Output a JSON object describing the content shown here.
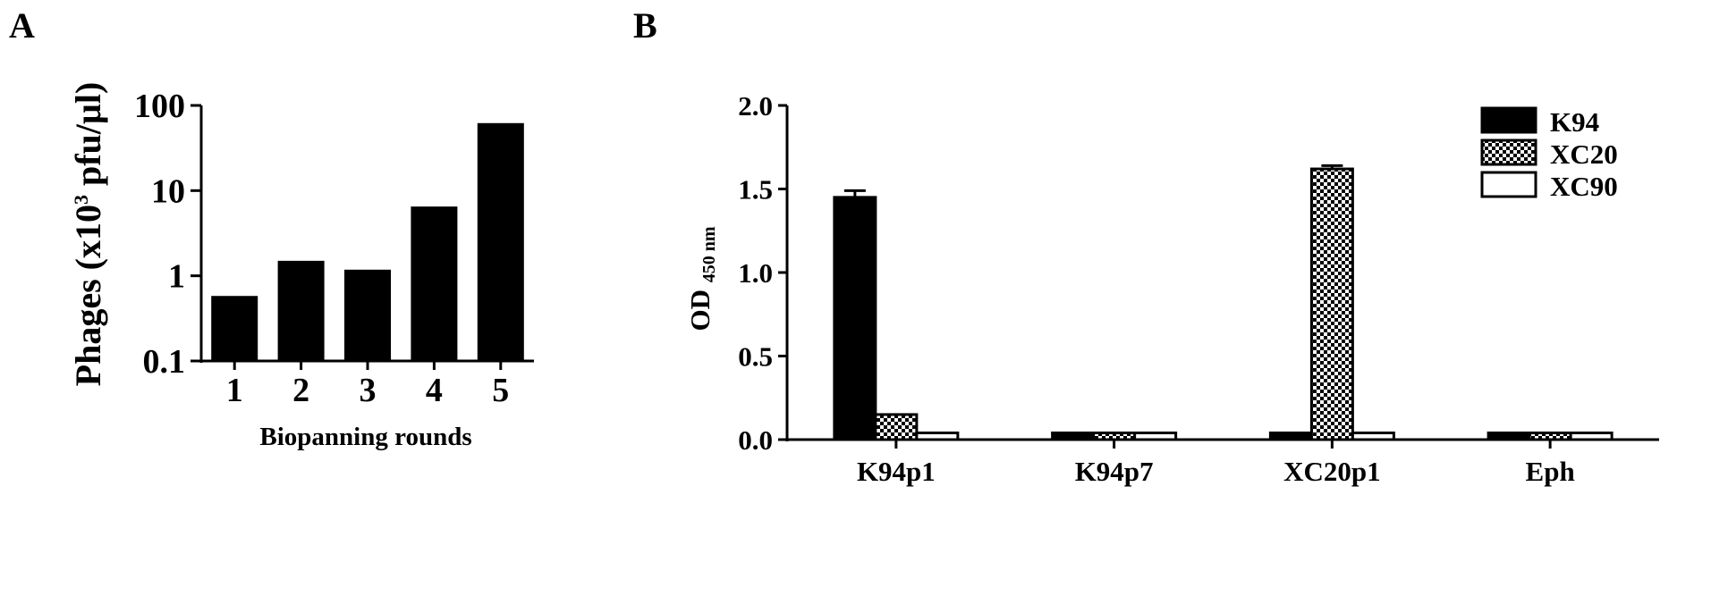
{
  "chart_data": [
    {
      "panel_label": "A",
      "type": "bar",
      "ylog": true,
      "ylim": [
        0.1,
        100
      ],
      "categories": [
        "1",
        "2",
        "3",
        "4",
        "5"
      ],
      "values": [
        0.58,
        1.5,
        1.18,
        6.5,
        62
      ],
      "yticks": [
        "0.1",
        "1",
        "10",
        "100"
      ],
      "xlabel": "Biopanning rounds",
      "ylabel_main": "Phages (x10",
      "ylabel_sup": "3",
      "ylabel_end": " pfu/µl)",
      "bar_color": "#000000"
    },
    {
      "panel_label": "B",
      "type": "bar",
      "ylim": [
        0,
        2.0
      ],
      "categories": [
        "K94p1",
        "K94p7",
        "XC20p1",
        "Eph"
      ],
      "series": [
        {
          "name": "K94",
          "values": [
            1.45,
            0.04,
            0.04,
            0.04
          ],
          "errors": [
            0.04,
            0,
            0,
            0
          ],
          "fill": "solid"
        },
        {
          "name": "XC20",
          "values": [
            0.15,
            0.04,
            1.62,
            0.04
          ],
          "errors": [
            0,
            0,
            0.02,
            0
          ],
          "fill": "checker"
        },
        {
          "name": "XC90",
          "values": [
            0.04,
            0.04,
            0.04,
            0.04
          ],
          "errors": [
            0,
            0,
            0,
            0
          ],
          "fill": "white"
        }
      ],
      "yticks": [
        "0.0",
        "0.5",
        "1.0",
        "1.5",
        "2.0"
      ],
      "ylabel_main": "OD ",
      "ylabel_sub": "450 nm",
      "legend_position": "top-right"
    }
  ]
}
